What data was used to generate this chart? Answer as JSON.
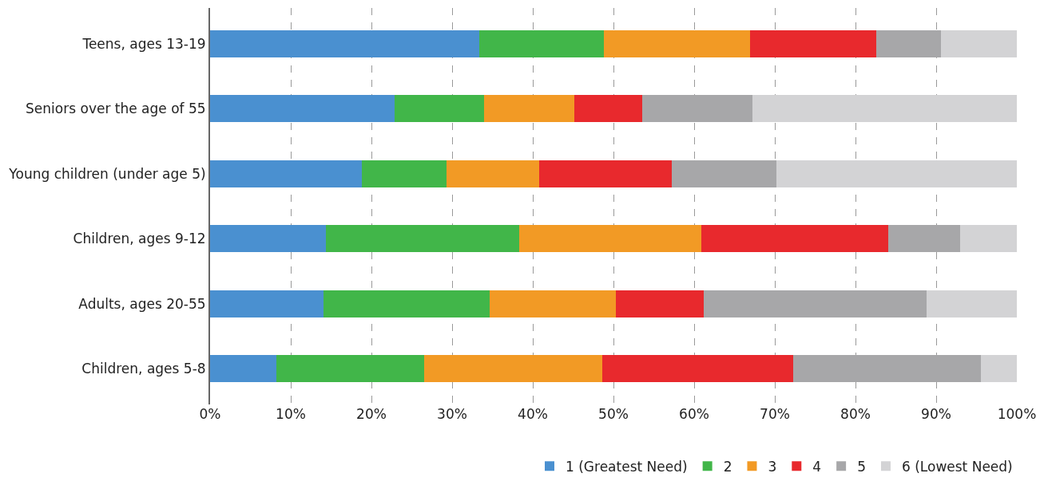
{
  "chart_data": {
    "type": "bar",
    "orientation": "horizontal",
    "stacked": true,
    "categories": [
      "Teens, ages 13-19",
      "Seniors over the age of 55",
      "Young children (under age 5)",
      "Children, ages 9-12",
      "Adults, ages 20-55",
      "Children, ages 5-8"
    ],
    "series": [
      {
        "name": "1 (Greatest Need)",
        "color": "#4a90d0",
        "values": [
          33.4,
          22.9,
          18.8,
          14.4,
          14.1,
          8.2
        ]
      },
      {
        "name": "2",
        "color": "#41b649",
        "values": [
          15.4,
          11.1,
          10.5,
          23.9,
          20.6,
          18.3
        ]
      },
      {
        "name": "3",
        "color": "#f29a25",
        "values": [
          18.1,
          11.1,
          11.5,
          22.6,
          15.6,
          22.1
        ]
      },
      {
        "name": "4",
        "color": "#e8292d",
        "values": [
          15.7,
          8.5,
          16.4,
          23.2,
          10.9,
          23.7
        ]
      },
      {
        "name": "5",
        "color": "#a7a7a9",
        "values": [
          8.0,
          13.6,
          13.0,
          8.9,
          27.6,
          23.2
        ]
      },
      {
        "name": "6 (Lowest Need)",
        "color": "#d3d3d5",
        "values": [
          9.4,
          32.8,
          29.8,
          7.0,
          11.2,
          4.5
        ]
      }
    ],
    "xlim": [
      0,
      100
    ],
    "xticks": [
      {
        "value": 0,
        "label": "0%"
      },
      {
        "value": 10,
        "label": "10%"
      },
      {
        "value": 20,
        "label": "20%"
      },
      {
        "value": 30,
        "label": "30%"
      },
      {
        "value": 40,
        "label": "40%"
      },
      {
        "value": 50,
        "label": "50%"
      },
      {
        "value": 60,
        "label": "60%"
      },
      {
        "value": 70,
        "label": "70%"
      },
      {
        "value": 80,
        "label": "80%"
      },
      {
        "value": 90,
        "label": "90%"
      },
      {
        "value": 100,
        "label": "100%"
      }
    ],
    "grid": "x",
    "legend": "bottom right"
  }
}
